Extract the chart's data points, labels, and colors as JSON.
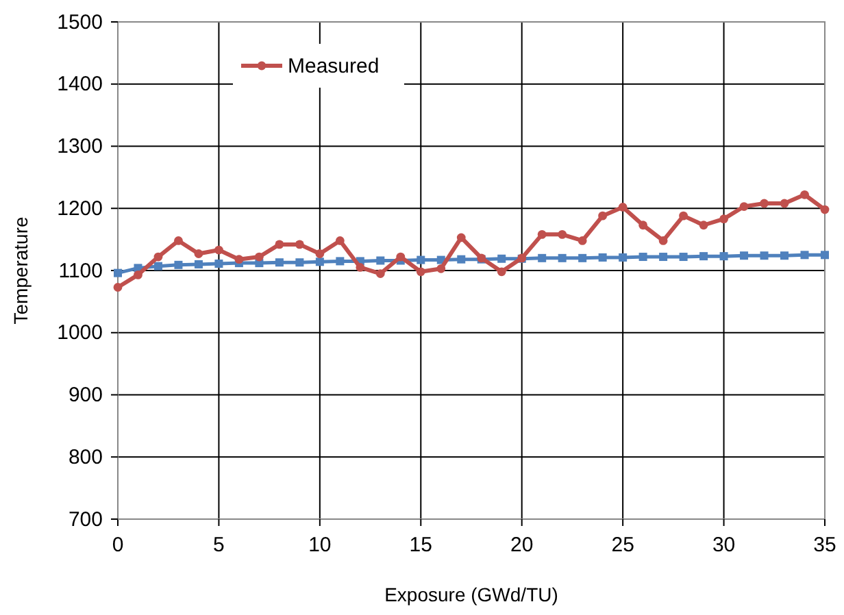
{
  "chart_data": {
    "type": "line",
    "xlabel": "Exposure (GWd/TU)",
    "ylabel": "Temperature",
    "x": [
      0,
      1,
      2,
      3,
      4,
      5,
      6,
      7,
      8,
      9,
      10,
      11,
      12,
      13,
      14,
      15,
      16,
      17,
      18,
      19,
      20,
      21,
      22,
      23,
      24,
      25,
      26,
      27,
      28,
      29,
      30,
      31,
      32,
      33,
      34,
      35
    ],
    "series": [
      {
        "name": "Measured",
        "color": "#c0504d",
        "marker": "circle",
        "values": [
          1073,
          1093,
          1122,
          1148,
          1127,
          1133,
          1118,
          1122,
          1142,
          1142,
          1127,
          1148,
          1105,
          1095,
          1122,
          1098,
          1103,
          1153,
          1120,
          1098,
          1120,
          1158,
          1158,
          1148,
          1188,
          1202,
          1173,
          1148,
          1188,
          1173,
          1183,
          1203,
          1208,
          1208,
          1222,
          1198
        ]
      },
      {
        "color": "#4f81bd",
        "marker": "square",
        "values": [
          1096,
          1104,
          1107,
          1109,
          1110,
          1111,
          1112,
          1112,
          1113,
          1113,
          1114,
          1115,
          1115,
          1116,
          1116,
          1117,
          1117,
          1118,
          1118,
          1119,
          1119,
          1120,
          1120,
          1120,
          1121,
          1121,
          1122,
          1122,
          1122,
          1123,
          1123,
          1124,
          1124,
          1124,
          1125,
          1125
        ]
      }
    ],
    "xlim": [
      0,
      35
    ],
    "xticks": [
      0,
      5,
      10,
      15,
      20,
      25,
      30,
      35
    ],
    "ylim": [
      700,
      1500
    ],
    "yticks": [
      700,
      800,
      900,
      1000,
      1100,
      1200,
      1300,
      1400,
      1500
    ],
    "grid": true,
    "legend": "top left"
  }
}
